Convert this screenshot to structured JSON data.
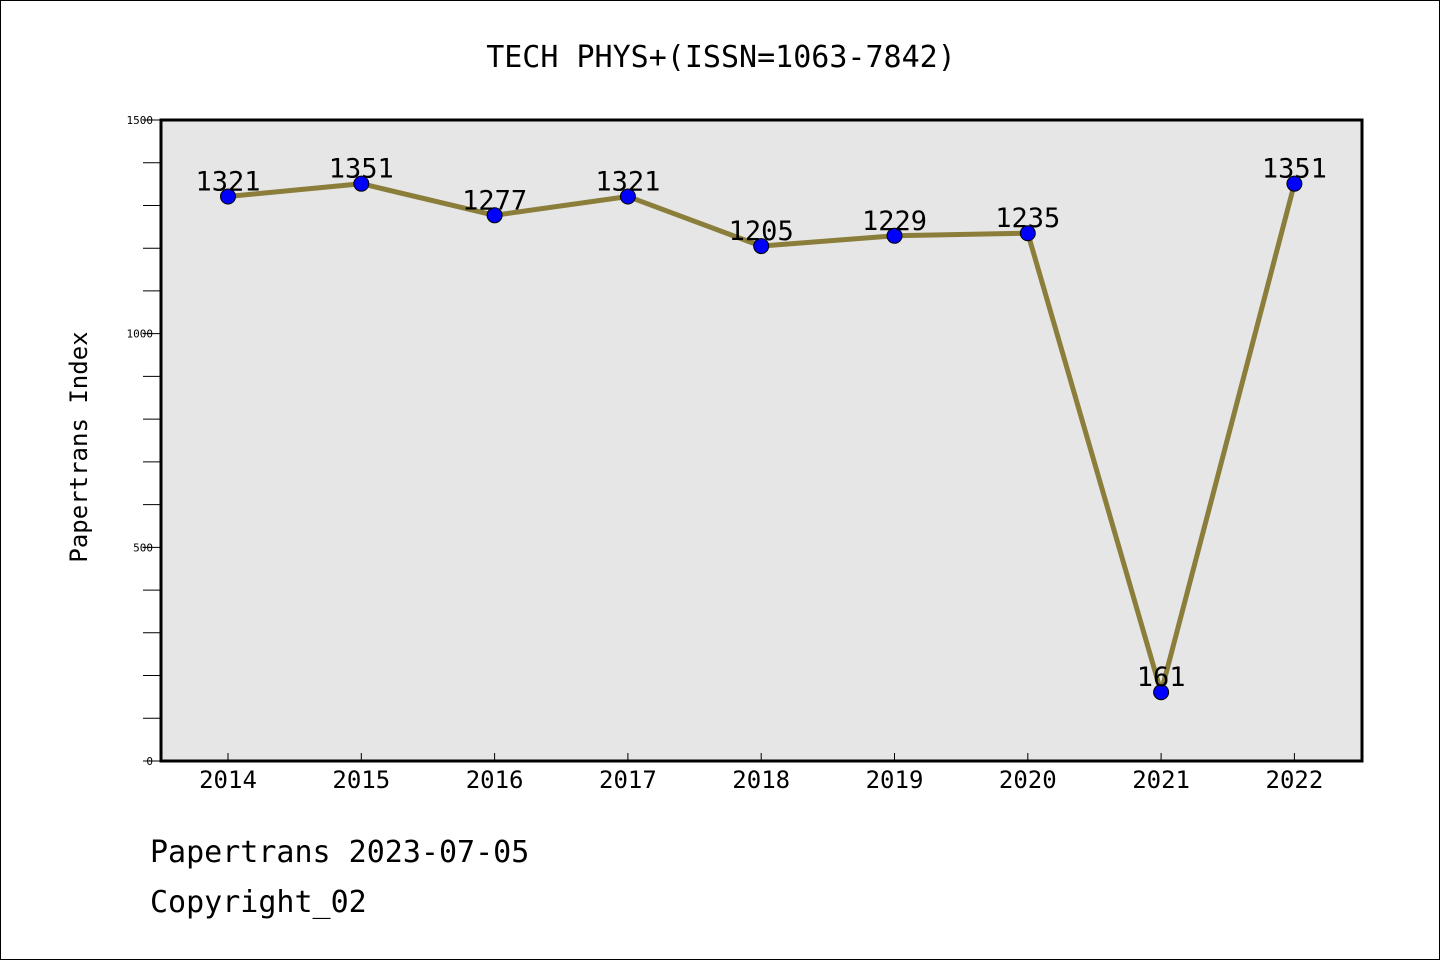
{
  "chart_data": {
    "type": "line",
    "title": "TECH PHYS+(ISSN=1063-7842)",
    "xlabel": "",
    "ylabel": "Papertrans Index",
    "categories": [
      "2014",
      "2015",
      "2016",
      "2017",
      "2018",
      "2019",
      "2020",
      "2021",
      "2022"
    ],
    "series": [
      {
        "values": [
          1321,
          1351,
          1277,
          1321,
          1205,
          1229,
          1235,
          161,
          1351
        ]
      }
    ],
    "data_labels": [
      "1321",
      "1351",
      "1277",
      "1321",
      "1205",
      "1229",
      "1235",
      "161",
      "1351"
    ],
    "ylim": [
      0,
      1500
    ],
    "y_ticks": [
      "0",
      "500",
      "1000",
      "1500"
    ],
    "grid": false,
    "colors": {
      "line": "#8b7d3a",
      "marker": "#0000ff",
      "plot_background": "#e6e6e6"
    }
  },
  "footer": {
    "source_line": "Papertrans 2023-07-05",
    "copyright_line": "Copyright_02"
  }
}
